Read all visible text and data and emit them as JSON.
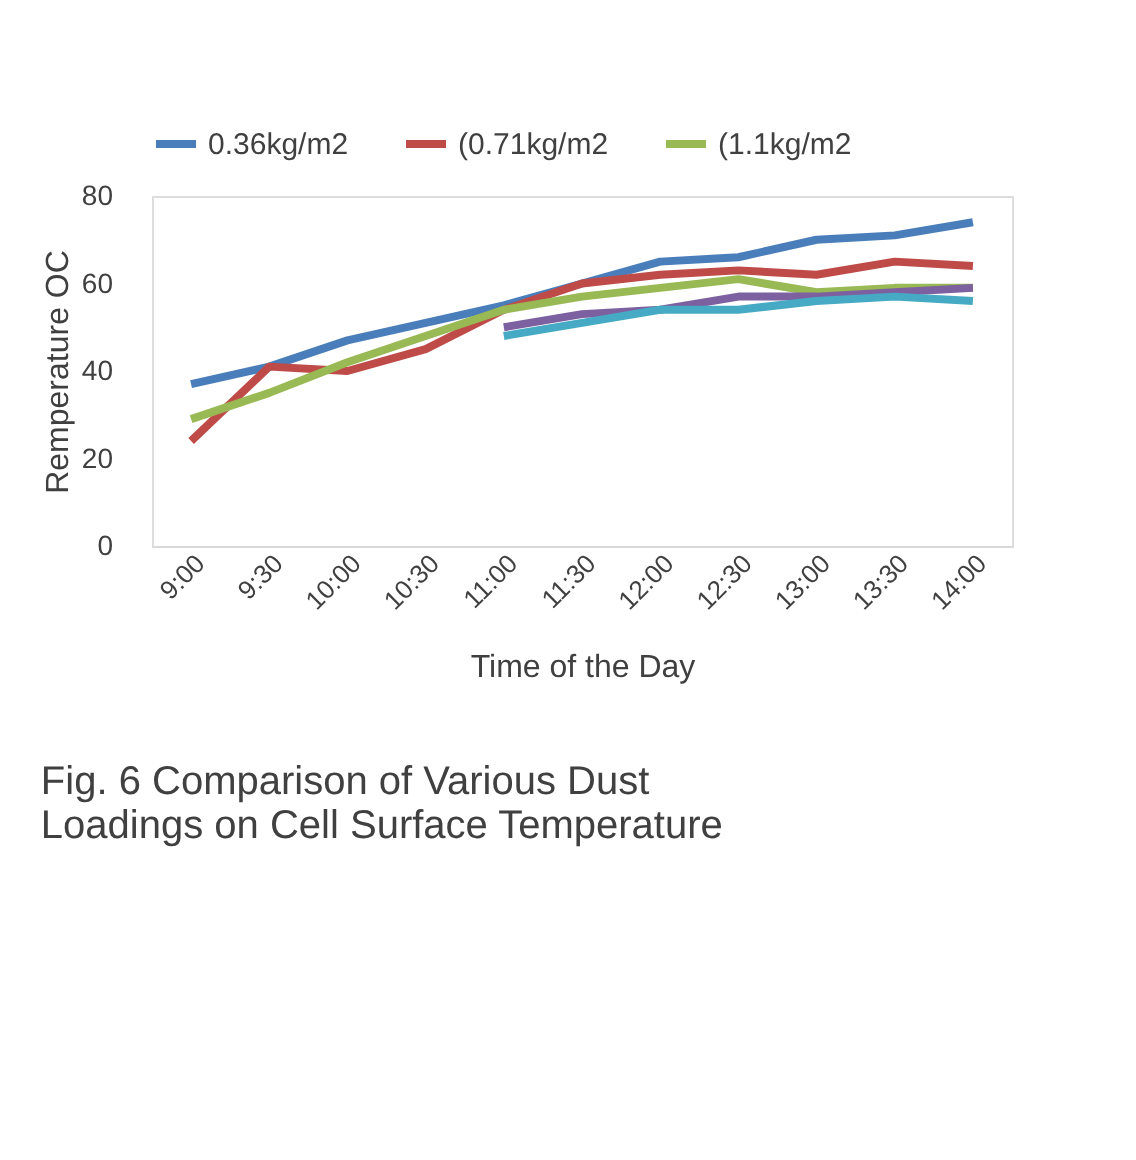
{
  "chart_data": {
    "type": "line",
    "title": [
      "Fig. 6 Comparison of Various Dust",
      "Loadings on Cell Surface Temperature"
    ],
    "xlabel": "Time of the Day",
    "ylabel": "Remperature OC",
    "categories": [
      "9:00",
      "9:30",
      "10:00",
      "10:30",
      "11:00",
      "11:30",
      "12:00",
      "12:30",
      "13:00",
      "13:30",
      "14:00"
    ],
    "series": [
      {
        "name": "0.36kg/m2",
        "color": "#4a7ebb",
        "values": [
          37,
          41,
          47,
          51,
          55,
          60,
          65,
          66,
          70,
          71,
          74
        ]
      },
      {
        "name": "(0.71kg/m2",
        "color": "#be4b48",
        "values": [
          24,
          41,
          40,
          45,
          54,
          60,
          62,
          63,
          62,
          65,
          64
        ]
      },
      {
        "name": "(1.1kg/m2",
        "color": "#98b954",
        "values": [
          29,
          35,
          42,
          48,
          54,
          57,
          59,
          61,
          58,
          59,
          59
        ]
      },
      {
        "color": "#7d60a0",
        "values": [
          null,
          null,
          null,
          null,
          50,
          53,
          54,
          57,
          57,
          58,
          59
        ]
      },
      {
        "color": "#46aac5",
        "values": [
          null,
          null,
          null,
          null,
          48,
          51,
          54,
          54,
          56,
          57,
          56
        ]
      }
    ],
    "ylim": [
      0,
      80
    ],
    "yticks": [
      0,
      20,
      40,
      60,
      80
    ],
    "grid": false,
    "legend": "top",
    "line_style": "solid",
    "marker": "none"
  }
}
